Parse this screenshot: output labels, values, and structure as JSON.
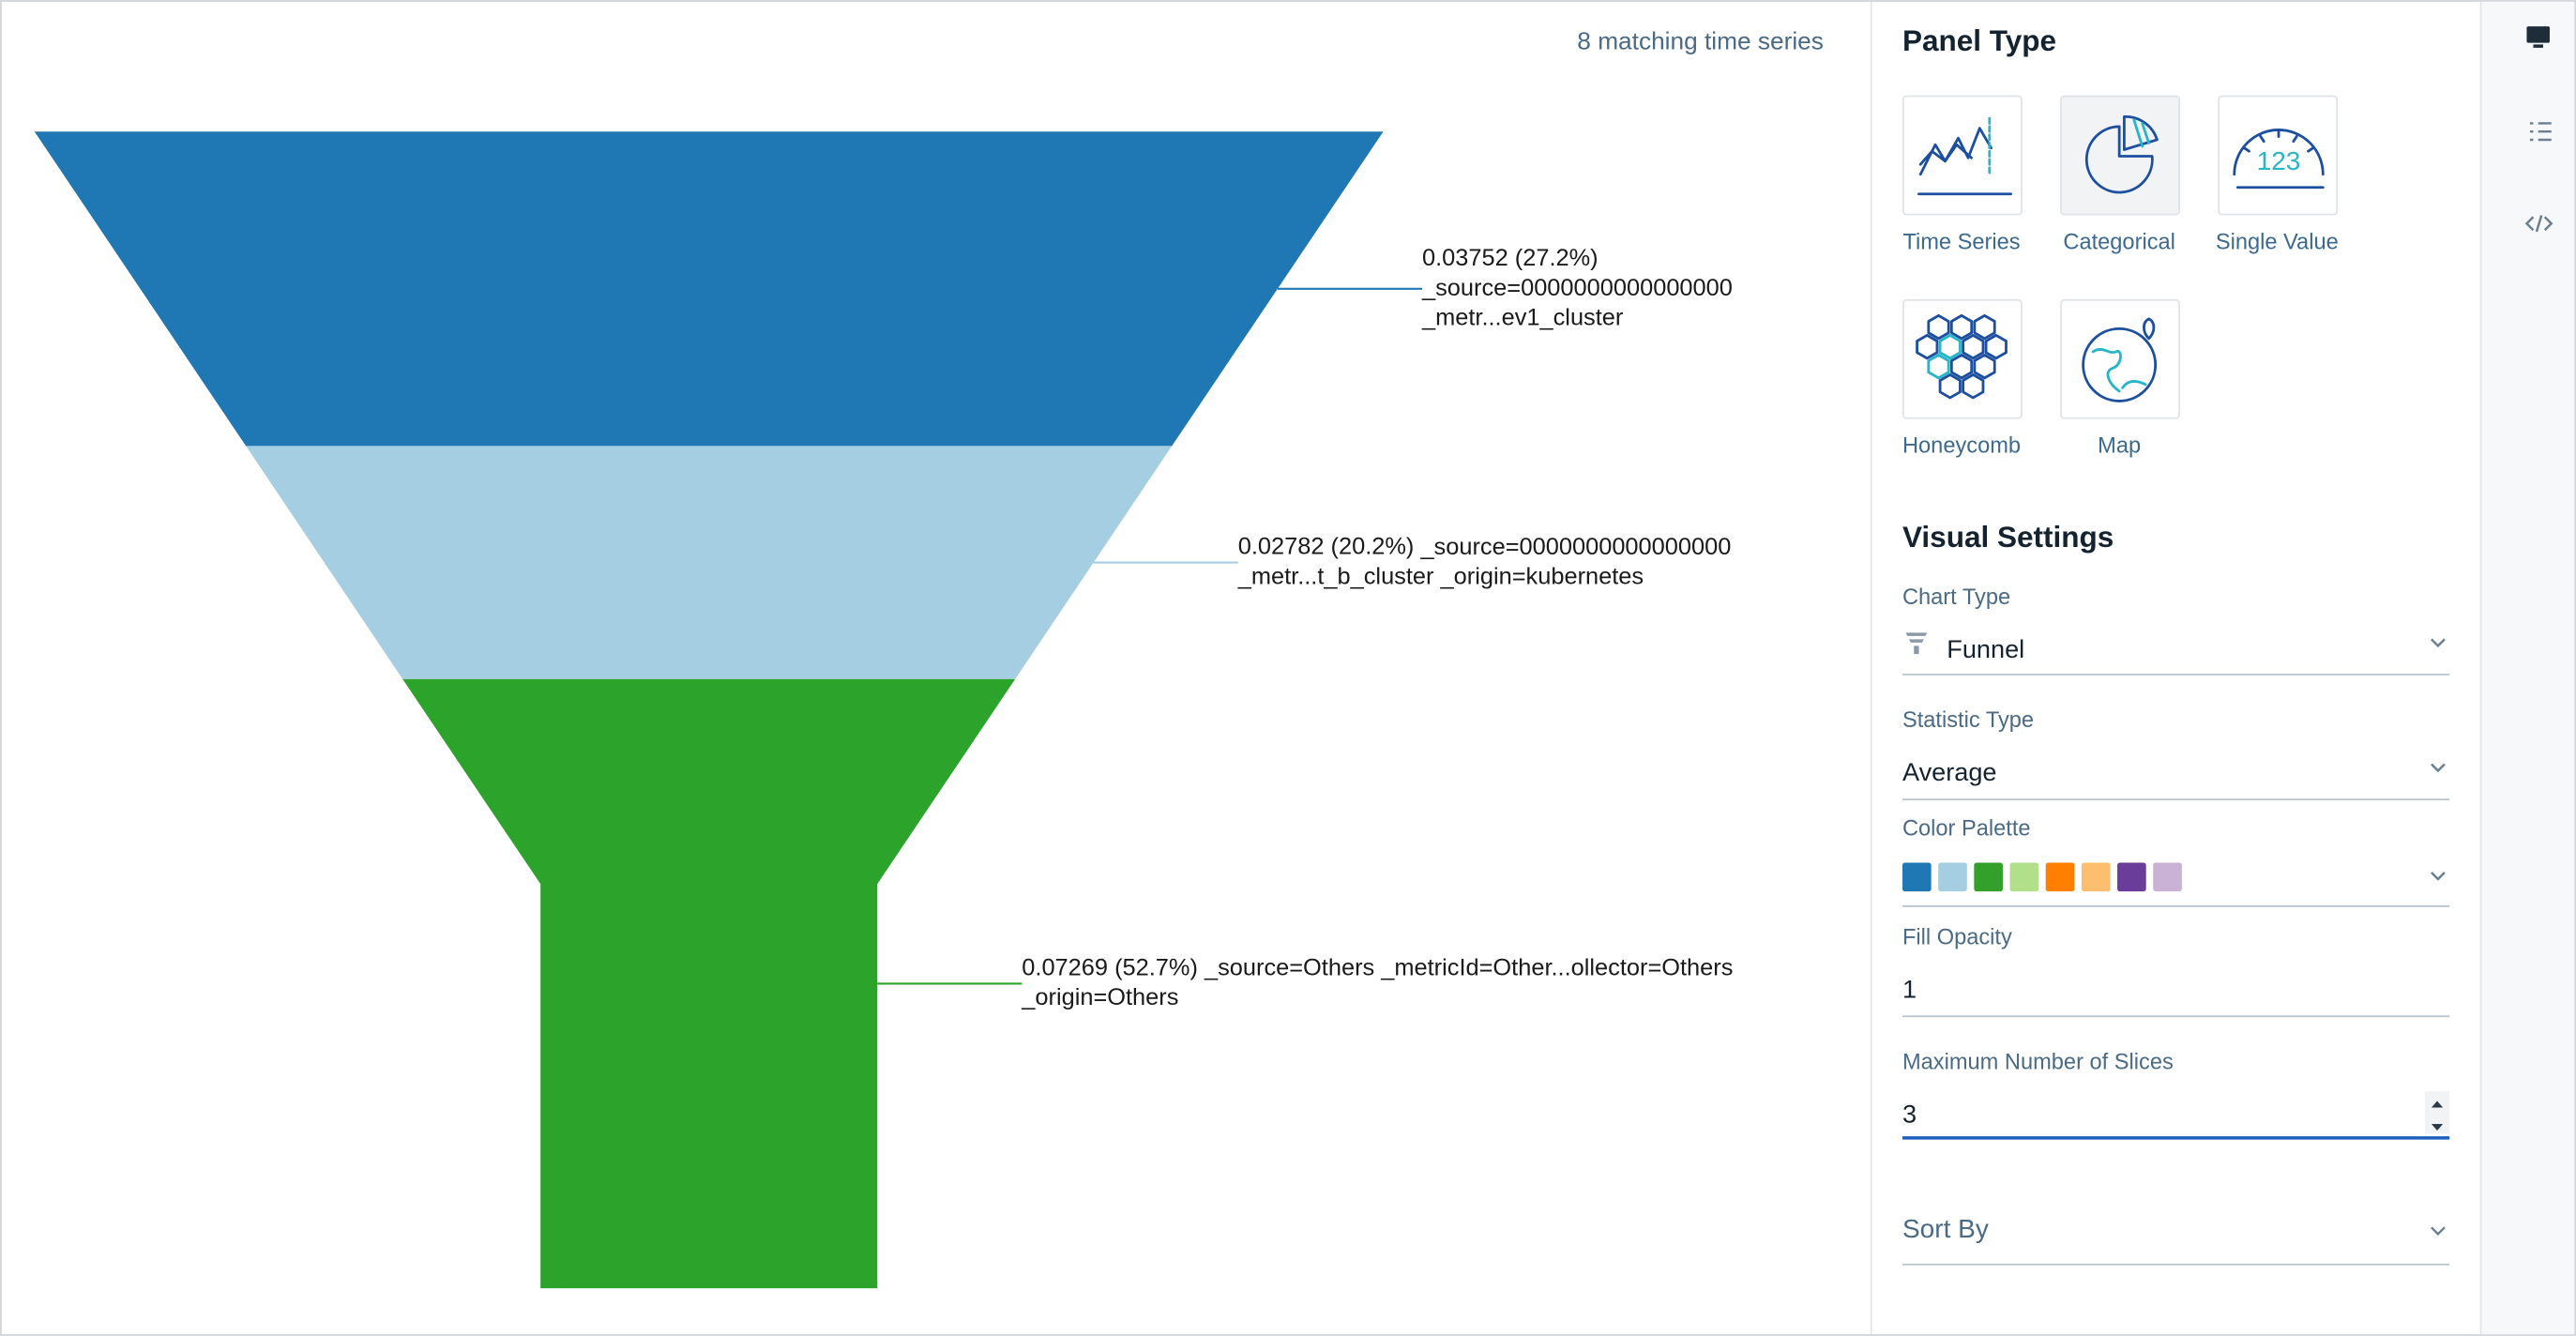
{
  "header": {
    "matching": "8 matching time series"
  },
  "chart_data": {
    "type": "funnel",
    "categories": [
      "_source=0000000000000000 _metr...ev1_cluster",
      "_source=0000000000000000 _metr...t_b_cluster _origin=kubernetes",
      "_source=Others _metricId=Other...ollector=Others _origin=Others"
    ],
    "values": [
      0.03752,
      0.02782,
      0.07269
    ],
    "share_labels": [
      "(27.2%)",
      "(20.2%)",
      "(52.7%)"
    ],
    "colors": [
      "#1f78b4",
      "#a6cee3",
      "#2ca42c"
    ]
  },
  "panel": {
    "panel_type_title": "Panel Type",
    "panel_types": [
      "Time Series",
      "Categorical",
      "Single Value",
      "Honeycomb",
      "Map"
    ],
    "selected_panel_type": 1,
    "visual_settings_title": "Visual Settings",
    "chart_type": {
      "label": "Chart Type",
      "value": "Funnel"
    },
    "statistic_type": {
      "label": "Statistic Type",
      "value": "Average"
    },
    "color_palette": {
      "label": "Color Palette",
      "colors": [
        "#1f78b4",
        "#a6cee3",
        "#33a02c",
        "#b2df8a",
        "#ff7f00",
        "#fdbf6f",
        "#6a3d9a",
        "#cab2d6"
      ]
    },
    "fill_opacity": {
      "label": "Fill Opacity",
      "value": 1
    },
    "max_slices": {
      "label": "Maximum Number of Slices",
      "value": 3
    },
    "sort_by": {
      "label": "Sort By"
    }
  }
}
